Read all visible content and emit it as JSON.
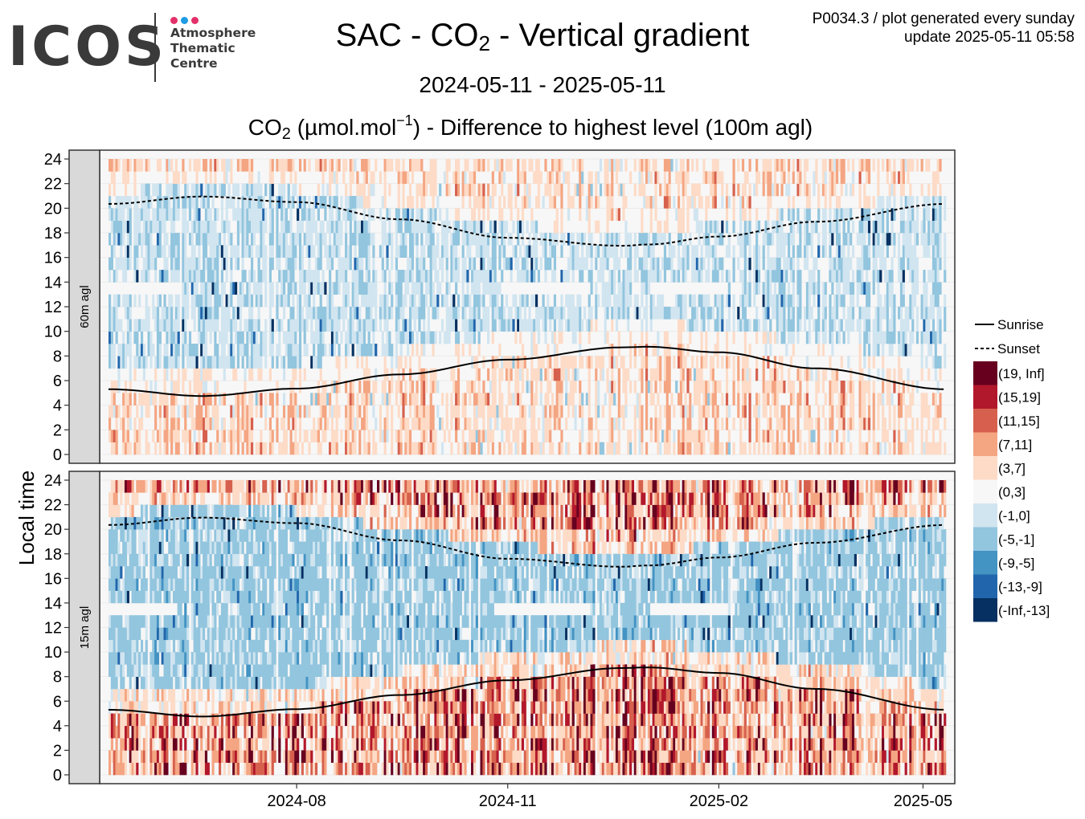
{
  "logo": {
    "wordmark": "ICOS",
    "line1": "Atmosphere",
    "line2": "Thematic",
    "line3": "Centre",
    "dot_colors": [
      "#e3306b",
      "#1e9be3",
      "#e3306b"
    ]
  },
  "header": {
    "title_pre": "SAC - CO",
    "title_sub": "2",
    "title_post": " - Vertical gradient",
    "info_line1": "P0034.3 / plot generated every sunday",
    "info_line2": "update  2025-05-11 05:58",
    "date_range": "2024-05-11 - 2025-05-11",
    "subtitle_pre": "CO",
    "subtitle_sub": "2",
    "subtitle_mid": " (µmol.mol",
    "subtitle_sup": "−1",
    "subtitle_post": ") - Difference to highest level (100m agl)"
  },
  "chart_data": {
    "type": "heatmap",
    "x_range": [
      "2024-05-11",
      "2025-05-11"
    ],
    "x_ticks": [
      "2024-08",
      "2024-11",
      "2025-02",
      "2025-05"
    ],
    "x_tick_dates": [
      "2024-08-01",
      "2024-11-01",
      "2025-02-01",
      "2025-05-01"
    ],
    "ylabel": "Local time",
    "y_range": [
      0,
      24
    ],
    "y_ticks": [
      0,
      2,
      4,
      6,
      8,
      10,
      12,
      14,
      16,
      18,
      20,
      22,
      24
    ],
    "panels": [
      {
        "label": "60m agl",
        "gradient_strength": 0.45
      },
      {
        "label": "15m agl",
        "gradient_strength": 1.0
      }
    ],
    "legend": {
      "lines": [
        {
          "name": "Sunrise",
          "style": "solid"
        },
        {
          "name": "Sunset",
          "style": "dashed"
        }
      ],
      "bins": [
        {
          "label": "(19, Inf]",
          "color": "#67001f"
        },
        {
          "label": "(15,19]",
          "color": "#b2182b"
        },
        {
          "label": "(11,15]",
          "color": "#d6604d"
        },
        {
          "label": "(7,11]",
          "color": "#f4a582"
        },
        {
          "label": "(3,7]",
          "color": "#fddbc7"
        },
        {
          "label": "(0,3]",
          "color": "#f7f7f7"
        },
        {
          "label": "(-1,0]",
          "color": "#d1e5f0"
        },
        {
          "label": "(-5,-1]",
          "color": "#92c5de"
        },
        {
          "label": "(-9,-5]",
          "color": "#4393c3"
        },
        {
          "label": "(-13,-9]",
          "color": "#2166ac"
        },
        {
          "label": "(-Inf,-13]",
          "color": "#053061"
        }
      ]
    },
    "sunrise_hours": [
      {
        "date": "2024-05-11",
        "h": 5.3
      },
      {
        "date": "2024-06-21",
        "h": 4.75
      },
      {
        "date": "2024-08-01",
        "h": 5.35
      },
      {
        "date": "2024-09-15",
        "h": 6.5
      },
      {
        "date": "2024-11-01",
        "h": 7.7
      },
      {
        "date": "2024-12-21",
        "h": 8.7
      },
      {
        "date": "2025-01-01",
        "h": 8.75
      },
      {
        "date": "2025-02-01",
        "h": 8.3
      },
      {
        "date": "2025-03-15",
        "h": 7.0
      },
      {
        "date": "2025-05-11",
        "h": 5.3
      }
    ],
    "sunset_hours": [
      {
        "date": "2024-05-11",
        "h": 20.35
      },
      {
        "date": "2024-06-21",
        "h": 20.95
      },
      {
        "date": "2024-08-01",
        "h": 20.5
      },
      {
        "date": "2024-09-15",
        "h": 19.1
      },
      {
        "date": "2024-11-01",
        "h": 17.6
      },
      {
        "date": "2024-12-21",
        "h": 16.95
      },
      {
        "date": "2025-01-01",
        "h": 17.05
      },
      {
        "date": "2025-02-01",
        "h": 17.7
      },
      {
        "date": "2025-03-15",
        "h": 18.9
      },
      {
        "date": "2025-05-11",
        "h": 20.35
      }
    ]
  }
}
